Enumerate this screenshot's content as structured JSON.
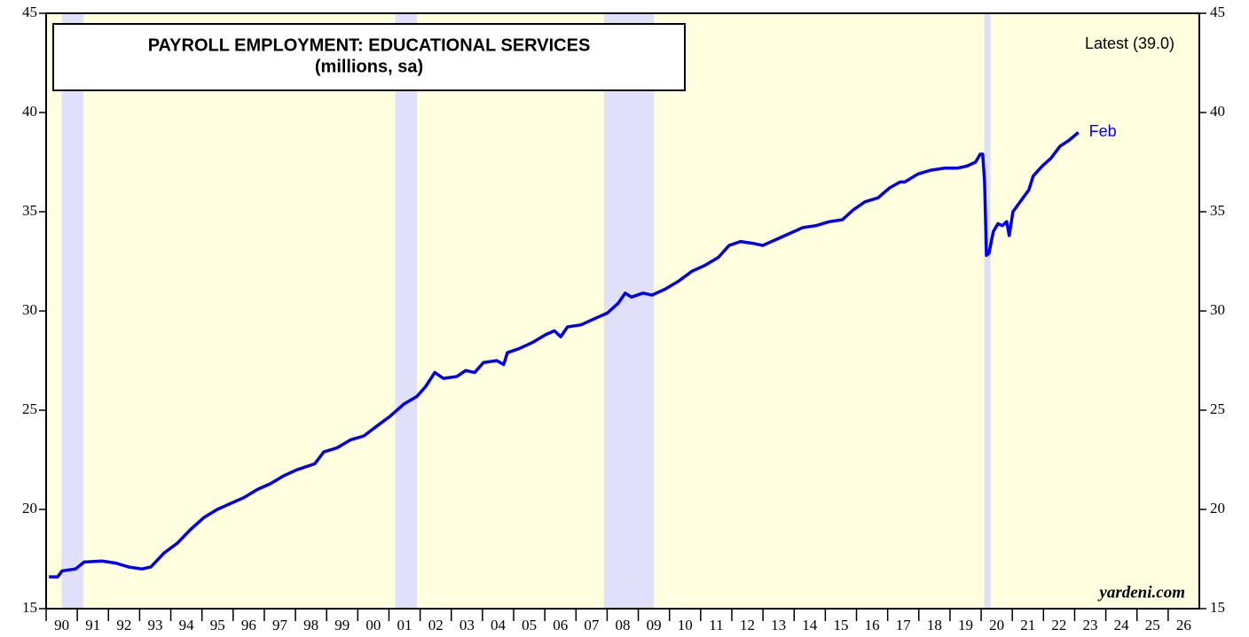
{
  "chart_data": {
    "type": "line",
    "title": "PAYROLL EMPLOYMENT: EDUCATIONAL SERVICES",
    "subtitle": "(millions, sa)",
    "annotation_latest": "Latest (39.0)",
    "annotation_end": "Feb",
    "source": "yardeni.com",
    "xlim": [
      1990,
      2027
    ],
    "ylim": [
      15,
      45
    ],
    "y2lim": [
      15,
      45
    ],
    "yticks": [
      15,
      20,
      25,
      30,
      35,
      40,
      45
    ],
    "y2ticks": [
      15,
      20,
      25,
      30,
      35,
      40,
      45
    ],
    "xticks": [
      {
        "value": 1990,
        "label": "90"
      },
      {
        "value": 1991,
        "label": "91"
      },
      {
        "value": 1992,
        "label": "92"
      },
      {
        "value": 1993,
        "label": "93"
      },
      {
        "value": 1994,
        "label": "94"
      },
      {
        "value": 1995,
        "label": "95"
      },
      {
        "value": 1996,
        "label": "96"
      },
      {
        "value": 1997,
        "label": "97"
      },
      {
        "value": 1998,
        "label": "98"
      },
      {
        "value": 1999,
        "label": "99"
      },
      {
        "value": 2000,
        "label": "00"
      },
      {
        "value": 2001,
        "label": "01"
      },
      {
        "value": 2002,
        "label": "02"
      },
      {
        "value": 2003,
        "label": "03"
      },
      {
        "value": 2004,
        "label": "04"
      },
      {
        "value": 2005,
        "label": "05"
      },
      {
        "value": 2006,
        "label": "06"
      },
      {
        "value": 2007,
        "label": "07"
      },
      {
        "value": 2008,
        "label": "08"
      },
      {
        "value": 2009,
        "label": "09"
      },
      {
        "value": 2010,
        "label": "10"
      },
      {
        "value": 2011,
        "label": "11"
      },
      {
        "value": 2012,
        "label": "12"
      },
      {
        "value": 2013,
        "label": "13"
      },
      {
        "value": 2014,
        "label": "14"
      },
      {
        "value": 2015,
        "label": "15"
      },
      {
        "value": 2016,
        "label": "16"
      },
      {
        "value": 2017,
        "label": "17"
      },
      {
        "value": 2018,
        "label": "18"
      },
      {
        "value": 2019,
        "label": "19"
      },
      {
        "value": 2020,
        "label": "20"
      },
      {
        "value": 2021,
        "label": "21"
      },
      {
        "value": 2022,
        "label": "22"
      },
      {
        "value": 2023,
        "label": "23"
      },
      {
        "value": 2024,
        "label": "24"
      },
      {
        "value": 2025,
        "label": "25"
      },
      {
        "value": 2026,
        "label": "26"
      }
    ],
    "background_color": "#ffffe0",
    "recession_color": "#e0e0fa",
    "recessions": [
      [
        1990.5,
        1991.2
      ],
      [
        2001.2,
        2001.9
      ],
      [
        2007.9,
        2009.5
      ],
      [
        2020.1,
        2020.3
      ]
    ],
    "x": [
      1990.09,
      1990.37,
      1990.51,
      1990.94,
      1991.22,
      1991.79,
      1992.22,
      1992.65,
      1993.07,
      1993.36,
      1993.78,
      1994.21,
      1994.64,
      1995.07,
      1995.49,
      1995.92,
      1996.35,
      1996.77,
      1997.2,
      1997.63,
      1998.05,
      1998.62,
      1998.91,
      1999.33,
      1999.76,
      2000.19,
      2000.61,
      2001.04,
      2001.47,
      2001.9,
      2002.18,
      2002.47,
      2002.75,
      2003.18,
      2003.46,
      2003.75,
      2004.03,
      2004.46,
      2004.68,
      2004.8,
      2005.17,
      2005.59,
      2006.02,
      2006.31,
      2006.51,
      2006.73,
      2007.16,
      2007.58,
      2008.01,
      2008.36,
      2008.58,
      2008.78,
      2009.15,
      2009.44,
      2009.86,
      2010.29,
      2010.72,
      2011.14,
      2011.57,
      2011.91,
      2012.28,
      2012.71,
      2012.99,
      2013.42,
      2013.85,
      2014.27,
      2014.7,
      2015.13,
      2015.55,
      2015.9,
      2016.27,
      2016.69,
      2017.06,
      2017.4,
      2017.55,
      2017.97,
      2018.4,
      2018.83,
      2019.25,
      2019.54,
      2019.82,
      2019.97,
      2020.05,
      2020.11,
      2020.17,
      2020.25,
      2020.39,
      2020.54,
      2020.68,
      2020.82,
      2020.9,
      2021.02,
      2021.25,
      2021.53,
      2021.67,
      2021.96,
      2022.24,
      2022.53,
      2022.82,
      2023.12
    ],
    "series": [
      {
        "name": "Educational Services",
        "color": "#0000ee",
        "values": [
          16.6,
          16.6,
          16.9,
          17.0,
          17.35,
          17.4,
          17.3,
          17.1,
          17.0,
          17.1,
          17.8,
          18.3,
          19.0,
          19.6,
          20.0,
          20.3,
          20.6,
          21.0,
          21.3,
          21.7,
          22.0,
          22.3,
          22.9,
          23.1,
          23.5,
          23.7,
          24.2,
          24.7,
          25.3,
          25.7,
          26.2,
          26.9,
          26.6,
          26.7,
          27.0,
          26.9,
          27.4,
          27.5,
          27.3,
          27.9,
          28.1,
          28.4,
          28.8,
          29.0,
          28.7,
          29.2,
          29.3,
          29.6,
          29.9,
          30.4,
          30.9,
          30.7,
          30.9,
          30.8,
          31.1,
          31.5,
          32.0,
          32.3,
          32.7,
          33.3,
          33.5,
          33.4,
          33.3,
          33.6,
          33.9,
          34.2,
          34.3,
          34.5,
          34.6,
          35.1,
          35.5,
          35.7,
          36.2,
          36.5,
          36.5,
          36.9,
          37.1,
          37.2,
          37.2,
          37.3,
          37.5,
          37.9,
          37.9,
          36.5,
          32.8,
          32.9,
          34.0,
          34.4,
          34.3,
          34.5,
          33.8,
          35.0,
          35.5,
          36.1,
          36.8,
          37.3,
          37.7,
          38.3,
          38.6,
          39.0
        ]
      }
    ]
  }
}
